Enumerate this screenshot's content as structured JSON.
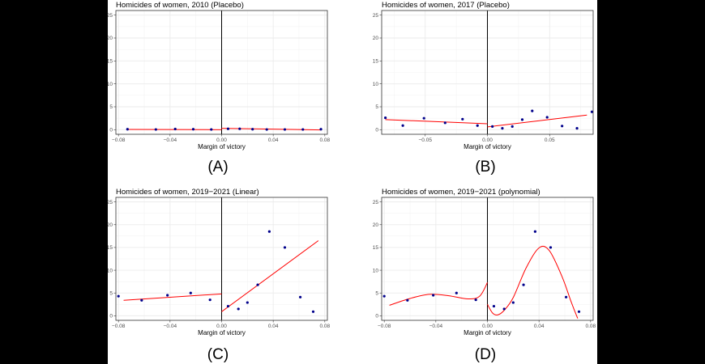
{
  "chart_data": [
    {
      "type": "scatter",
      "panel_label": "(A)",
      "title": "Homicides of women, 2010 (Placebo)",
      "xlabel": "Margin of victory",
      "ylabel": "",
      "xlim": [
        -0.082,
        0.082
      ],
      "ylim": [
        -1,
        26
      ],
      "x_ticks": [
        -0.08,
        -0.04,
        0.0,
        0.04,
        0.08
      ],
      "x_tick_labels": [
        "−0.08",
        "−0.04",
        "0.00",
        "0.04",
        "0.08"
      ],
      "y_ticks": [
        0,
        5,
        10,
        15,
        20,
        25
      ],
      "y_tick_labels": [
        "0",
        "5",
        "10",
        "15",
        "20",
        "25"
      ],
      "cutoff": 0,
      "grid": true,
      "points": [
        [
          -0.073,
          0.1
        ],
        [
          -0.051,
          0.05
        ],
        [
          -0.036,
          0.15
        ],
        [
          -0.022,
          0.1
        ],
        [
          -0.008,
          0.05
        ],
        [
          0.005,
          0.2
        ],
        [
          0.014,
          0.2
        ],
        [
          0.024,
          0.1
        ],
        [
          0.035,
          0.05
        ],
        [
          0.049,
          0.05
        ],
        [
          0.063,
          0.05
        ],
        [
          0.077,
          0.1
        ]
      ],
      "fit": {
        "type": "linear",
        "left": [
          [
            -0.073,
            0.05
          ],
          [
            0,
            0.0
          ]
        ],
        "right": [
          [
            0,
            0.3
          ],
          [
            0.077,
            -0.05
          ]
        ]
      }
    },
    {
      "type": "scatter",
      "panel_label": "(B)",
      "title": "Homicides of women, 2017 (Placebo)",
      "xlabel": "Margin of victory",
      "ylabel": "",
      "xlim": [
        -0.085,
        0.085
      ],
      "ylim": [
        -1,
        26
      ],
      "x_ticks": [
        -0.05,
        0.0,
        0.05
      ],
      "x_tick_labels": [
        "−0.05",
        "0.00",
        "0.05"
      ],
      "y_ticks": [
        0,
        5,
        10,
        15,
        20,
        25
      ],
      "y_tick_labels": [
        "0",
        "5",
        "10",
        "15",
        "20",
        "25"
      ],
      "cutoff": 0,
      "grid": true,
      "points": [
        [
          -0.082,
          2.6
        ],
        [
          -0.068,
          0.9
        ],
        [
          -0.051,
          2.5
        ],
        [
          -0.034,
          1.5
        ],
        [
          -0.02,
          2.3
        ],
        [
          -0.008,
          0.9
        ],
        [
          0.004,
          0.7
        ],
        [
          0.012,
          0.3
        ],
        [
          0.02,
          0.7
        ],
        [
          0.028,
          2.2
        ],
        [
          0.036,
          4.1
        ],
        [
          0.048,
          2.7
        ],
        [
          0.06,
          0.8
        ],
        [
          0.072,
          0.3
        ],
        [
          0.084,
          3.9
        ]
      ],
      "fit": {
        "type": "linear",
        "left": [
          [
            -0.082,
            2.2
          ],
          [
            0,
            1.3
          ]
        ],
        "right": [
          [
            0,
            0.6
          ],
          [
            0.08,
            3.2
          ]
        ]
      }
    },
    {
      "type": "scatter",
      "panel_label": "(C)",
      "title": "Homicides of women, 2019−2021 (Linear)",
      "xlabel": "Margin of victory",
      "ylabel": "",
      "xlim": [
        -0.082,
        0.082
      ],
      "ylim": [
        -1,
        26
      ],
      "x_ticks": [
        -0.08,
        -0.04,
        0.0,
        0.04,
        0.08
      ],
      "x_tick_labels": [
        "−0.08",
        "−0.04",
        "0.00",
        "0.04",
        "0.08"
      ],
      "y_ticks": [
        0,
        5,
        10,
        15,
        20,
        25
      ],
      "y_tick_labels": [
        "0",
        "5",
        "10",
        "15",
        "20",
        "25"
      ],
      "cutoff": 0,
      "grid": true,
      "points": [
        [
          -0.08,
          4.3
        ],
        [
          -0.062,
          3.4
        ],
        [
          -0.042,
          4.5
        ],
        [
          -0.024,
          5.0
        ],
        [
          -0.009,
          3.5
        ],
        [
          0.005,
          2.1
        ],
        [
          0.013,
          1.5
        ],
        [
          0.02,
          2.9
        ],
        [
          0.028,
          6.8
        ],
        [
          0.037,
          18.5
        ],
        [
          0.049,
          15.0
        ],
        [
          0.061,
          4.1
        ],
        [
          0.071,
          0.9
        ]
      ],
      "fit": {
        "type": "linear",
        "left": [
          [
            -0.076,
            3.4
          ],
          [
            0,
            4.8
          ]
        ],
        "right": [
          [
            0,
            0.9
          ],
          [
            0.075,
            16.5
          ]
        ]
      }
    },
    {
      "type": "scatter",
      "panel_label": "(D)",
      "title": "Homicides of women, 2019−2021 (polynomial)",
      "xlabel": "Margin of victory",
      "ylabel": "",
      "xlim": [
        -0.082,
        0.082
      ],
      "ylim": [
        -1,
        26
      ],
      "x_ticks": [
        -0.08,
        -0.04,
        0.0,
        0.04,
        0.08
      ],
      "x_tick_labels": [
        "−0.08",
        "−0.04",
        "0.00",
        "0.04",
        "0.08"
      ],
      "y_ticks": [
        0,
        5,
        10,
        15,
        20,
        25
      ],
      "y_tick_labels": [
        "0",
        "5",
        "10",
        "15",
        "20",
        "25"
      ],
      "cutoff": 0,
      "grid": true,
      "points": [
        [
          -0.08,
          4.3
        ],
        [
          -0.062,
          3.4
        ],
        [
          -0.042,
          4.5
        ],
        [
          -0.024,
          5.0
        ],
        [
          -0.009,
          3.5
        ],
        [
          0.005,
          2.1
        ],
        [
          0.013,
          1.5
        ],
        [
          0.02,
          2.9
        ],
        [
          0.028,
          6.8
        ],
        [
          0.037,
          18.5
        ],
        [
          0.049,
          15.0
        ],
        [
          0.061,
          4.1
        ],
        [
          0.071,
          0.9
        ]
      ],
      "fit": {
        "type": "polynomial",
        "left": [
          [
            -0.076,
            2.3
          ],
          [
            -0.06,
            3.8
          ],
          [
            -0.045,
            4.7
          ],
          [
            -0.03,
            4.4
          ],
          [
            -0.015,
            3.7
          ],
          [
            -0.006,
            4.3
          ],
          [
            0,
            7.3
          ]
        ],
        "right": [
          [
            0,
            2.5
          ],
          [
            0.004,
            0.6
          ],
          [
            0.008,
            0.2
          ],
          [
            0.013,
            1.2
          ],
          [
            0.02,
            4.0
          ],
          [
            0.03,
            10.5
          ],
          [
            0.04,
            14.9
          ],
          [
            0.048,
            14.3
          ],
          [
            0.058,
            8.5
          ],
          [
            0.065,
            3.0
          ],
          [
            0.07,
            -0.6
          ]
        ]
      }
    }
  ]
}
